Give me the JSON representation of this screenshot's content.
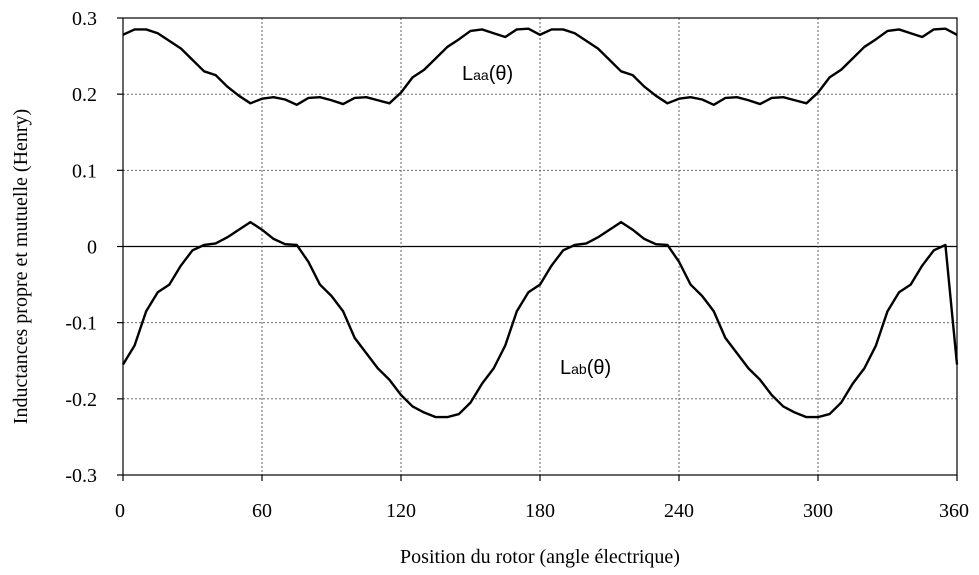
{
  "chart_data": {
    "type": "line",
    "xlabel": "Position du rotor (angle électrique)",
    "ylabel": "Inductances  propre  et  mutuelle  (Henry)",
    "xlim": [
      0,
      360
    ],
    "ylim": [
      -0.3,
      0.3
    ],
    "xticks": [
      0,
      60,
      120,
      180,
      240,
      300,
      360
    ],
    "yticks": [
      0.3,
      0.2,
      0.1,
      0,
      -0.1,
      -0.2,
      -0.3
    ],
    "ytick_labels": [
      "0.3",
      "0.2",
      "0.1",
      "0",
      "-0.1",
      "-0.2",
      "-0.3"
    ],
    "grid": true,
    "series": [
      {
        "name_main": "L",
        "name_sub": "aa",
        "name_tail": "(θ)",
        "x": [
          0,
          5,
          10,
          15,
          20,
          25,
          30,
          35,
          40,
          45,
          50,
          55,
          60,
          65,
          70,
          75,
          80,
          85,
          90,
          95,
          100,
          105,
          110,
          115,
          120,
          125,
          130,
          135,
          140,
          145,
          150,
          155,
          160,
          165,
          170,
          175,
          180,
          185,
          190,
          195,
          200,
          205,
          210,
          215,
          220,
          225,
          230,
          235,
          240,
          245,
          250,
          255,
          260,
          265,
          270,
          275,
          280,
          285,
          290,
          295,
          300,
          305,
          310,
          315,
          320,
          325,
          330,
          335,
          340,
          345,
          350,
          355,
          360
        ],
        "y": [
          0.278,
          0.285,
          0.285,
          0.28,
          0.27,
          0.26,
          0.245,
          0.23,
          0.225,
          0.21,
          0.198,
          0.188,
          0.194,
          0.196,
          0.193,
          0.186,
          0.195,
          0.196,
          0.192,
          0.187,
          0.195,
          0.196,
          0.192,
          0.188,
          0.202,
          0.222,
          0.232,
          0.247,
          0.262,
          0.272,
          0.283,
          0.285,
          0.28,
          0.275,
          0.285,
          0.286,
          0.278,
          0.285,
          0.285,
          0.28,
          0.27,
          0.26,
          0.245,
          0.23,
          0.225,
          0.21,
          0.198,
          0.188,
          0.194,
          0.196,
          0.193,
          0.186,
          0.195,
          0.196,
          0.192,
          0.187,
          0.195,
          0.196,
          0.192,
          0.188,
          0.202,
          0.222,
          0.232,
          0.247,
          0.262,
          0.272,
          0.283,
          0.285,
          0.28,
          0.275,
          0.285,
          0.286,
          0.278
        ]
      },
      {
        "name_main": "L",
        "name_sub": "ab",
        "name_tail": "(θ)",
        "x": [
          0,
          5,
          10,
          15,
          20,
          25,
          30,
          35,
          40,
          45,
          50,
          55,
          60,
          65,
          70,
          75,
          80,
          85,
          90,
          95,
          100,
          105,
          110,
          115,
          120,
          125,
          130,
          135,
          140,
          145,
          150,
          155,
          160,
          165,
          170,
          175,
          180,
          185,
          190,
          195,
          200,
          205,
          210,
          215,
          220,
          225,
          230,
          235,
          240,
          245,
          250,
          255,
          260,
          265,
          270,
          275,
          280,
          285,
          290,
          295,
          300,
          305,
          310,
          315,
          320,
          325,
          330,
          335,
          340,
          345,
          350,
          355,
          360
        ],
        "y": [
          -0.155,
          -0.13,
          -0.085,
          -0.06,
          -0.05,
          -0.025,
          -0.005,
          0.002,
          0.004,
          0.012,
          0.022,
          0.032,
          0.022,
          0.01,
          0.003,
          0.002,
          -0.02,
          -0.05,
          -0.065,
          -0.085,
          -0.12,
          -0.14,
          -0.16,
          -0.175,
          -0.195,
          -0.21,
          -0.218,
          -0.224,
          -0.224,
          -0.22,
          -0.205,
          -0.18,
          -0.16,
          -0.13,
          -0.085,
          -0.06,
          -0.05,
          -0.025,
          -0.005,
          0.002,
          0.004,
          0.012,
          0.022,
          0.032,
          0.022,
          0.01,
          0.003,
          0.002,
          -0.02,
          -0.05,
          -0.065,
          -0.085,
          -0.12,
          -0.14,
          -0.16,
          -0.175,
          -0.195,
          -0.21,
          -0.218,
          -0.224,
          -0.224,
          -0.22,
          -0.205,
          -0.18,
          -0.16,
          -0.13,
          -0.085,
          -0.06,
          -0.05,
          -0.025,
          -0.005,
          0.002,
          -0.155
        ]
      }
    ]
  }
}
